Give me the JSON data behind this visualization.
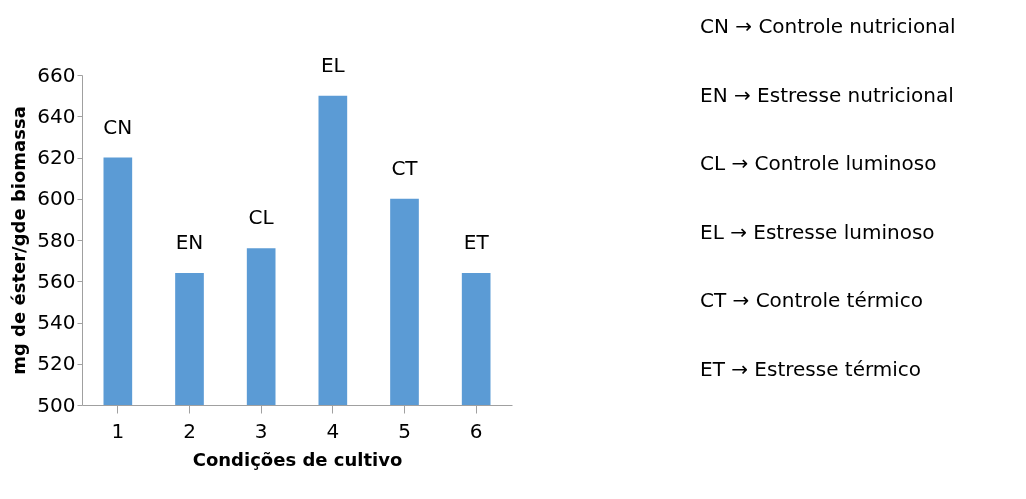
{
  "chart_data": {
    "type": "bar",
    "xlabel": "Condições de cultivo",
    "ylabel": "mg de éster/gde biomassa",
    "categories": [
      "1",
      "2",
      "3",
      "4",
      "5",
      "6"
    ],
    "series": [
      {
        "color": "#5b9bd5",
        "values": [
          620,
          564,
          576,
          650,
          600,
          564
        ]
      }
    ],
    "ylim": [
      500,
      660
    ],
    "yticks": [
      500,
      520,
      540,
      560,
      580,
      600,
      620,
      640,
      660
    ],
    "grid": false,
    "annotations": [
      {
        "text": "CN",
        "x": "1",
        "y": 620
      },
      {
        "text": "EN",
        "x": "2",
        "y": 564
      },
      {
        "text": "CL",
        "x": "3",
        "y": 576
      },
      {
        "text": "EL",
        "x": "4",
        "y": 650
      },
      {
        "text": "CT",
        "x": "5",
        "y": 600
      },
      {
        "text": "ET",
        "x": "6",
        "y": 564
      },
      "CN → Controle nutricional",
      "EN → Estresse nutricional",
      "CL → Controle luminoso",
      "EL → Estresse luminoso",
      "CT → Controle térmico",
      "ET → Estresse térmico"
    ]
  }
}
